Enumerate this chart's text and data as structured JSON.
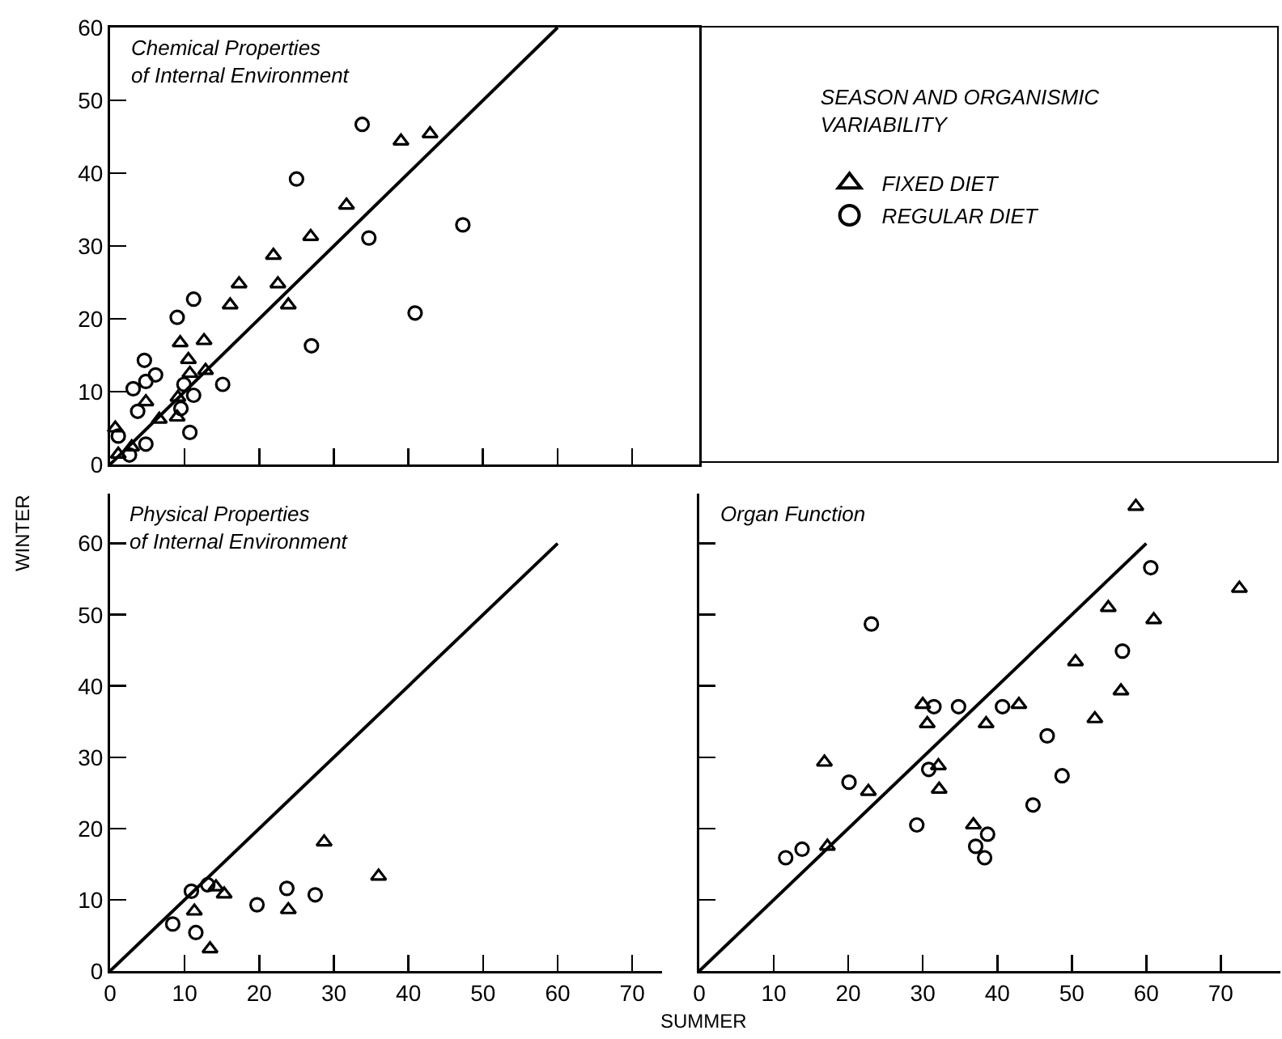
{
  "chart_data": [
    {
      "type": "scatter",
      "title": "Chemical Properties\nof Internal Environment",
      "legend_title": "SEASON AND ORGANISMIC\nVARIABILITY",
      "legend": "right",
      "tick_labels": "y",
      "xlim": [
        0,
        79
      ],
      "ylim": [
        0,
        60
      ],
      "xticks": [
        0,
        10,
        20,
        30,
        40,
        50,
        60,
        70
      ],
      "yticks": [
        0,
        10,
        20,
        30,
        40,
        50,
        60
      ],
      "series": [
        {
          "name": "FIXED DIET",
          "color": "#000000",
          "marker": "triangle",
          "x": [
            39,
            42.9,
            31.7,
            26.9,
            21.9,
            17.3,
            16.1,
            22.5,
            23.9,
            9.4,
            12.6,
            10.5,
            12.8,
            10.7,
            4.8,
            9.1,
            9,
            6.6,
            0.7,
            2.9,
            1.1
          ],
          "values": [
            44.4,
            45.4,
            35.6,
            31.3,
            28.7,
            24.8,
            21.9,
            24.8,
            21.9,
            16.7,
            17,
            14.4,
            12.9,
            12.5,
            8.6,
            9.2,
            6.5,
            6.2,
            5,
            2.4,
            1.4
          ]
        },
        {
          "name": "REGULAR DIET",
          "color": "#000000",
          "marker": "circle",
          "x": [
            33.8,
            25,
            47.3,
            34.7,
            40.9,
            27,
            11.2,
            9,
            4.6,
            6.1,
            4.8,
            3.1,
            15.1,
            3.7,
            9.9,
            11.2,
            10.7,
            1.1,
            4.8,
            2.6,
            9.5
          ],
          "values": [
            46.7,
            39.2,
            32.9,
            31.1,
            20.8,
            16.3,
            22.7,
            20.2,
            14.3,
            12.3,
            11.4,
            10.4,
            11,
            7.3,
            11,
            9.5,
            4.4,
            3.9,
            2.8,
            1.3,
            7.7
          ]
        },
        {
          "type": "line",
          "color": "#000000",
          "marker": "none",
          "x": [
            0,
            60
          ],
          "values": [
            0,
            60
          ]
        }
      ]
    },
    {
      "type": "scatter",
      "title": "Physical Properties\nof Internal Environment",
      "xlabel": "SUMMER",
      "ylabel": "WINTER",
      "xlim": [
        0,
        74
      ],
      "ylim": [
        0,
        67
      ],
      "xticks": [
        0,
        10,
        20,
        30,
        40,
        50,
        60,
        70
      ],
      "yticks": [
        0,
        10,
        20,
        30,
        40,
        50,
        60
      ],
      "series": [
        {
          "color": "#000000",
          "marker": "triangle",
          "x": [
            11.3,
            13.4,
            15.3,
            28.7,
            23.9,
            36,
            14.2
          ],
          "values": [
            8.4,
            3.1,
            10.8,
            18.1,
            8.6,
            13.3,
            11.8
          ]
        },
        {
          "color": "#000000",
          "marker": "circle",
          "x": [
            8.4,
            10.9,
            11.5,
            19.7,
            23.7,
            27.5,
            13.1
          ],
          "values": [
            6.6,
            11.2,
            5.4,
            9.3,
            11.6,
            10.7,
            12.1
          ]
        },
        {
          "type": "line",
          "color": "#000000",
          "marker": "none",
          "x": [
            0,
            60
          ],
          "values": [
            0,
            60
          ]
        }
      ]
    },
    {
      "type": "scatter",
      "title": "Organ Function",
      "tick_labels": "x",
      "xlim": [
        0,
        78
      ],
      "ylim": [
        0,
        67
      ],
      "xticks": [
        0,
        10,
        20,
        30,
        40,
        50,
        60,
        70
      ],
      "yticks": [
        0,
        10,
        20,
        30,
        40,
        50,
        60
      ],
      "series": [
        {
          "color": "#000000",
          "marker": "triangle",
          "x": [
            58.6,
            16.8,
            22.7,
            17.2,
            30,
            30.6,
            32.1,
            32.2,
            38.5,
            36.8,
            42.9,
            50.5,
            54.9,
            53.1,
            56.6,
            61,
            72.5
          ],
          "values": [
            65.2,
            29.3,
            25.2,
            17.5,
            37.4,
            34.7,
            28.8,
            25.5,
            34.7,
            20.5,
            37.4,
            43.4,
            51,
            35.4,
            39.3,
            49.3,
            53.7
          ]
        },
        {
          "color": "#000000",
          "marker": "circle",
          "x": [
            23.1,
            60.6,
            56.8,
            31.5,
            34.8,
            40.7,
            30.8,
            20.1,
            46.7,
            48.7,
            44.8,
            29.2,
            38.7,
            37.1,
            38.3,
            11.6,
            13.8
          ],
          "values": [
            48.7,
            56.6,
            44.9,
            37.1,
            37.1,
            37.1,
            28.3,
            26.5,
            33,
            27.4,
            23.3,
            20.5,
            19.2,
            17.5,
            15.9,
            15.9,
            17.1
          ]
        },
        {
          "type": "line",
          "color": "#000000",
          "marker": "none",
          "x": [
            0,
            60
          ],
          "values": [
            0,
            60
          ]
        }
      ]
    }
  ]
}
